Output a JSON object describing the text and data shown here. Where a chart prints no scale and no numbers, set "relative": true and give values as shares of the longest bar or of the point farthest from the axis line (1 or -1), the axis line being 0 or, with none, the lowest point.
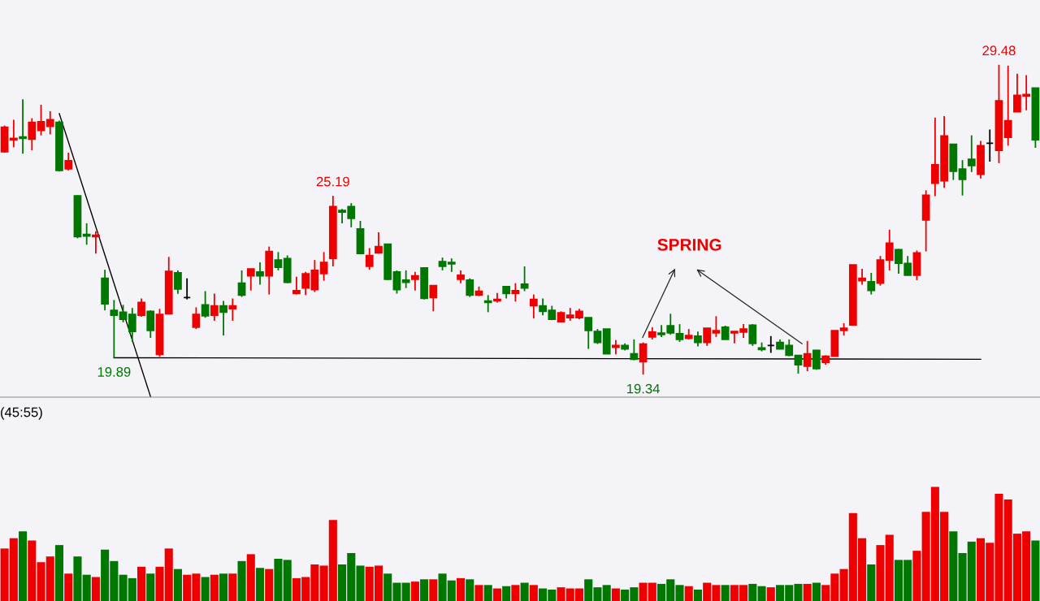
{
  "chart_data": [
    {
      "type": "candlestick",
      "categories": [
        null,
        null,
        null,
        null,
        null,
        null,
        null,
        null,
        null,
        null,
        null,
        null,
        null,
        null,
        null,
        null,
        null,
        null,
        null,
        null,
        null,
        null,
        null,
        null,
        null,
        null,
        null,
        null,
        null,
        null,
        null,
        null,
        null,
        null,
        null,
        null,
        null,
        null,
        null,
        null,
        null,
        null,
        null,
        null,
        null,
        null,
        null,
        null,
        null,
        null,
        null,
        null,
        null,
        null,
        null,
        null,
        null,
        null,
        null,
        null,
        null,
        null,
        null,
        null,
        null,
        null,
        null,
        null,
        null,
        null,
        null,
        null,
        null,
        null,
        null,
        null,
        null,
        null,
        null,
        null,
        null,
        null,
        null,
        null,
        null,
        null,
        null,
        null,
        null,
        null,
        null,
        null,
        null,
        null,
        null,
        null,
        null,
        null,
        null,
        null,
        null,
        null,
        null,
        null,
        null,
        null,
        null,
        null,
        null,
        null,
        null,
        null,
        null,
        null
      ],
      "ohlc": [
        [
          26.63,
          27.49,
          26.6,
          27.44
        ],
        [
          27.02,
          27.68,
          26.78,
          27.07
        ],
        [
          27.12,
          28.35,
          26.57,
          27.07
        ],
        [
          27.04,
          27.73,
          26.68,
          27.6
        ],
        [
          27.33,
          28.17,
          27.17,
          27.62
        ],
        [
          27.46,
          27.96,
          27.2,
          27.68
        ],
        [
          27.6,
          27.65,
          25.99,
          26.02
        ],
        [
          26.07,
          26.6,
          26.02,
          26.34
        ],
        [
          25.19,
          25.21,
          23.8,
          23.85
        ],
        [
          23.93,
          24.29,
          23.59,
          23.87
        ],
        [
          23.85,
          24.03,
          23.3,
          23.9
        ],
        [
          22.49,
          22.77,
          21.44,
          21.65
        ],
        [
          21.44,
          21.78,
          19.89,
          21.28
        ],
        [
          21.38,
          21.62,
          21.05,
          21.15
        ],
        [
          21.31,
          21.52,
          20.41,
          20.75
        ],
        [
          21.28,
          21.83,
          21.23,
          21.7
        ],
        [
          21.41,
          21.44,
          20.54,
          20.78
        ],
        [
          20.0,
          21.49,
          19.92,
          21.31
        ],
        [
          21.33,
          23.19,
          21.33,
          22.72
        ],
        [
          22.67,
          22.75,
          21.98,
          22.14
        ],
        [
          21.86,
          22.49,
          21.8,
          21.86
        ],
        [
          20.89,
          21.54,
          20.83,
          21.31
        ],
        [
          21.62,
          22.07,
          21.2,
          21.26
        ],
        [
          21.28,
          21.99,
          21.1,
          21.59
        ],
        [
          21.59,
          21.75,
          20.62,
          21.38
        ],
        [
          21.49,
          21.83,
          21.1,
          21.59
        ],
        [
          22.33,
          22.75,
          21.88,
          21.94
        ],
        [
          22.57,
          22.8,
          22.09,
          22.8
        ],
        [
          22.7,
          23.01,
          22.28,
          22.57
        ],
        [
          22.57,
          23.53,
          21.96,
          23.37
        ],
        [
          23.09,
          23.35,
          22.75,
          22.85
        ],
        [
          23.14,
          23.24,
          22.33,
          22.36
        ],
        [
          21.99,
          22.54,
          21.96,
          22.09
        ],
        [
          22.17,
          22.7,
          21.94,
          22.64
        ],
        [
          22.12,
          23.09,
          22.04,
          22.75
        ],
        [
          22.64,
          23.35,
          22.41,
          23.01
        ],
        [
          23.14,
          25.19,
          22.88,
          24.84
        ],
        [
          24.71,
          24.76,
          24.29,
          24.66
        ],
        [
          24.84,
          24.95,
          24.16,
          24.45
        ],
        [
          24.11,
          24.37,
          23.3,
          23.3
        ],
        [
          22.88,
          23.48,
          22.77,
          23.24
        ],
        [
          23.32,
          24.0,
          23.3,
          23.53
        ],
        [
          23.61,
          23.61,
          22.43,
          22.46
        ],
        [
          22.7,
          22.75,
          21.99,
          22.12
        ],
        [
          22.43,
          22.75,
          22.17,
          22.36
        ],
        [
          22.46,
          22.7,
          22.09,
          22.57
        ],
        [
          22.83,
          22.85,
          21.8,
          21.83
        ],
        [
          21.86,
          22.25,
          21.41,
          22.25
        ],
        [
          23.04,
          23.17,
          22.75,
          22.88
        ],
        [
          23.01,
          23.14,
          22.7,
          22.96
        ],
        [
          22.46,
          22.75,
          22.33,
          22.59
        ],
        [
          22.43,
          22.49,
          21.88,
          21.94
        ],
        [
          21.94,
          22.22,
          21.91,
          22.07
        ],
        [
          21.75,
          21.94,
          21.38,
          21.7
        ],
        [
          21.75,
          22.01,
          21.7,
          21.8
        ],
        [
          22.22,
          22.22,
          21.83,
          21.99
        ],
        [
          21.99,
          22.33,
          21.73,
          22.09
        ],
        [
          22.3,
          22.88,
          22.07,
          22.17
        ],
        [
          21.59,
          21.96,
          21.18,
          21.8
        ],
        [
          21.59,
          21.83,
          21.28,
          21.41
        ],
        [
          21.44,
          21.59,
          21.12,
          21.15
        ],
        [
          21.07,
          21.41,
          21.07,
          21.36
        ],
        [
          21.2,
          21.52,
          21.1,
          21.28
        ],
        [
          21.2,
          21.49,
          21.15,
          21.41
        ],
        [
          21.2,
          21.2,
          20.18,
          20.78
        ],
        [
          20.75,
          20.83,
          20.34,
          20.39
        ],
        [
          20.83,
          20.83,
          20.02,
          20.02
        ],
        [
          20.23,
          20.47,
          20.0,
          20.29
        ],
        [
          20.29,
          20.36,
          20.13,
          20.18
        ],
        [
          20.02,
          20.49,
          19.81,
          19.84
        ],
        [
          19.76,
          20.39,
          19.34,
          20.34
        ],
        [
          20.57,
          20.89,
          20.49,
          20.73
        ],
        [
          20.7,
          20.96,
          20.57,
          20.65
        ],
        [
          20.94,
          21.33,
          20.65,
          20.7
        ],
        [
          20.68,
          20.99,
          20.41,
          20.49
        ],
        [
          20.52,
          20.83,
          20.49,
          20.62
        ],
        [
          20.6,
          20.75,
          20.26,
          20.39
        ],
        [
          20.39,
          20.86,
          20.28,
          20.86
        ],
        [
          20.7,
          21.25,
          20.57,
          20.78
        ],
        [
          20.89,
          20.94,
          20.49,
          20.49
        ],
        [
          20.7,
          20.75,
          20.36,
          20.75
        ],
        [
          20.73,
          20.99,
          20.54,
          20.83
        ],
        [
          20.96,
          20.99,
          20.28,
          20.36
        ],
        [
          20.21,
          20.39,
          20.1,
          20.16
        ],
        [
          20.29,
          20.6,
          20.05,
          20.29
        ],
        [
          20.39,
          20.49,
          20.18,
          20.18
        ],
        [
          20.29,
          20.49,
          19.94,
          19.97
        ],
        [
          19.97,
          19.97,
          19.37,
          19.66
        ],
        [
          19.61,
          20.44,
          19.45,
          20.02
        ],
        [
          20.13,
          20.15,
          19.5,
          19.53
        ],
        [
          19.74,
          19.97,
          19.66,
          19.94
        ],
        [
          19.94,
          20.78,
          19.94,
          20.78
        ],
        [
          20.78,
          21.02,
          20.62,
          20.86
        ],
        [
          20.96,
          22.93,
          20.96,
          22.93
        ],
        [
          22.41,
          22.8,
          22.28,
          22.49
        ],
        [
          22.38,
          22.67,
          21.96,
          22.09
        ],
        [
          22.33,
          23.22,
          22.25,
          23.09
        ],
        [
          23.09,
          24.08,
          22.75,
          23.64
        ],
        [
          23.43,
          23.45,
          22.64,
          22.98
        ],
        [
          22.98,
          23.22,
          22.59,
          22.59
        ],
        [
          22.59,
          23.4,
          22.43,
          23.32
        ],
        [
          24.4,
          25.37,
          23.37,
          25.21
        ],
        [
          25.6,
          27.75,
          25.18,
          26.21
        ],
        [
          25.68,
          27.8,
          25.45,
          27.15
        ],
        [
          26.88,
          26.88,
          25.71,
          25.99
        ],
        [
          26.07,
          26.36,
          25.2,
          25.73
        ],
        [
          26.39,
          27.17,
          25.97,
          26.18
        ],
        [
          25.89,
          26.99,
          25.76,
          26.83
        ],
        [
          26.91,
          27.36,
          26.31,
          26.91
        ],
        [
          26.68,
          29.48,
          26.26,
          28.3
        ],
        [
          27.1,
          29.45,
          26.83,
          27.65
        ],
        [
          27.94,
          29.19,
          27.94,
          28.48
        ],
        [
          28.46,
          29.14,
          27.99,
          28.51
        ],
        [
          28.72,
          28.72,
          26.76,
          27.02
        ]
      ],
      "colors": [
        "#ee0000",
        "#ee0000",
        "#007700",
        "#ee0000",
        "#ee0000",
        "#ee0000",
        "#007700",
        "#ee0000",
        "#007700",
        "#007700",
        "#ee0000",
        "#007700",
        "#007700",
        "#007700",
        "#007700",
        "#ee0000",
        "#007700",
        "#ee0000",
        "#ee0000",
        "#007700",
        "#000000",
        "#ee0000",
        "#007700",
        "#ee0000",
        "#007700",
        "#ee0000",
        "#007700",
        "#ee0000",
        "#007700",
        "#ee0000",
        "#007700",
        "#007700",
        "#ee0000",
        "#ee0000",
        "#ee0000",
        "#ee0000",
        "#ee0000",
        "#007700",
        "#007700",
        "#007700",
        "#ee0000",
        "#ee0000",
        "#007700",
        "#007700",
        "#007700",
        "#ee0000",
        "#007700",
        "#ee0000",
        "#007700",
        "#007700",
        "#ee0000",
        "#007700",
        "#ee0000",
        "#007700",
        "#ee0000",
        "#007700",
        "#ee0000",
        "#007700",
        "#ee0000",
        "#007700",
        "#007700",
        "#ee0000",
        "#ee0000",
        "#ee0000",
        "#007700",
        "#007700",
        "#007700",
        "#ee0000",
        "#007700",
        "#007700",
        "#ee0000",
        "#ee0000",
        "#007700",
        "#007700",
        "#007700",
        "#ee0000",
        "#007700",
        "#ee0000",
        "#ee0000",
        "#007700",
        "#ee0000",
        "#ee0000",
        "#007700",
        "#007700",
        "#000000",
        "#007700",
        "#007700",
        "#007700",
        "#ee0000",
        "#007700",
        "#ee0000",
        "#ee0000",
        "#ee0000",
        "#ee0000",
        "#ee0000",
        "#007700",
        "#ee0000",
        "#ee0000",
        "#007700",
        "#007700",
        "#ee0000",
        "#ee0000",
        "#ee0000",
        "#ee0000",
        "#007700",
        "#007700",
        "#007700",
        "#ee0000",
        "#000000",
        "#ee0000",
        "#ee0000",
        "#ee0000",
        "#ee0000",
        "#007700"
      ],
      "ylim": [
        18.6,
        31.6
      ],
      "series": [
        {
          "type": "line",
          "color": "#000000",
          "values": [
            null,
            null,
            null,
            null,
            null,
            null,
            27.88,
            null,
            null,
            null,
            null,
            null,
            null,
            null,
            null,
            null,
            18.62,
            null,
            null,
            null,
            null,
            null,
            null,
            null,
            null,
            null,
            null,
            null,
            null,
            null,
            null,
            null,
            null,
            null,
            null,
            null,
            null,
            null,
            null,
            null,
            null,
            null,
            null,
            null,
            null,
            null,
            null,
            null,
            null,
            null,
            null,
            null,
            null,
            null,
            null,
            null,
            null,
            null,
            null,
            null,
            null,
            null,
            null,
            null,
            null,
            null,
            null,
            null,
            null,
            null,
            null,
            null,
            null,
            null,
            null,
            null,
            null,
            null,
            null,
            null,
            null,
            null,
            null,
            null,
            null,
            null,
            null,
            null,
            null,
            null,
            null,
            null,
            null,
            null,
            null,
            null,
            null,
            null,
            null,
            null,
            null,
            null,
            null,
            null,
            null,
            null,
            null,
            null,
            null,
            null,
            null,
            null,
            null,
            null
          ]
        },
        {
          "type": "line",
          "color": "#000000",
          "values": [
            null,
            null,
            null,
            null,
            null,
            null,
            null,
            null,
            null,
            null,
            null,
            null,
            19.89,
            null,
            null,
            null,
            null,
            null,
            null,
            null,
            null,
            null,
            null,
            null,
            null,
            null,
            null,
            null,
            null,
            null,
            null,
            null,
            null,
            null,
            null,
            null,
            null,
            null,
            null,
            null,
            null,
            null,
            null,
            null,
            null,
            null,
            null,
            null,
            null,
            null,
            null,
            null,
            null,
            null,
            null,
            null,
            null,
            null,
            null,
            null,
            null,
            null,
            null,
            null,
            null,
            null,
            null,
            null,
            null,
            null,
            null,
            null,
            null,
            null,
            null,
            null,
            null,
            null,
            null,
            null,
            null,
            null,
            null,
            null,
            null,
            null,
            null,
            null,
            null,
            null,
            null,
            null,
            null,
            null,
            null,
            null,
            null,
            null,
            null,
            null,
            null,
            null,
            null,
            null,
            null,
            null,
            null,
            19.84,
            null,
            null,
            null,
            null,
            null,
            null
          ]
        }
      ],
      "annotations": [
        {
          "text": "19.89",
          "y": 19.89
        },
        {
          "text": "25.19",
          "y": 25.19
        },
        {
          "text": "19.34",
          "y": 19.34
        },
        {
          "text": "29.48",
          "y": 29.48
        },
        "SPRING"
      ]
    },
    {
      "type": "bar",
      "relative": true,
      "categories": [
        null,
        null,
        null,
        null,
        null,
        null,
        null,
        null,
        null,
        null,
        null,
        null,
        null,
        null,
        null,
        null,
        null,
        null,
        null,
        null,
        null,
        null,
        null,
        null,
        null,
        null,
        null,
        null,
        null,
        null,
        null,
        null,
        null,
        null,
        null,
        null,
        null,
        null,
        null,
        null,
        null,
        null,
        null,
        null,
        null,
        null,
        null,
        null,
        null,
        null,
        null,
        null,
        null,
        null,
        null,
        null,
        null,
        null,
        null,
        null,
        null,
        null,
        null,
        null,
        null,
        null,
        null,
        null,
        null,
        null,
        null,
        null,
        null,
        null,
        null,
        null,
        null,
        null,
        null,
        null,
        null,
        null,
        null,
        null,
        null,
        null,
        null,
        null,
        null,
        null,
        null,
        null,
        null,
        null,
        null,
        null,
        null,
        null,
        null,
        null,
        null,
        null,
        null,
        null,
        null,
        null,
        null,
        null,
        null,
        null,
        null,
        null,
        null,
        null
      ],
      "values": [
        0.46,
        0.55,
        0.61,
        0.53,
        0.34,
        0.39,
        0.49,
        0.24,
        0.39,
        0.23,
        0.21,
        0.45,
        0.35,
        0.23,
        0.2,
        0.3,
        0.24,
        0.3,
        0.46,
        0.28,
        0.23,
        0.24,
        0.21,
        0.23,
        0.24,
        0.24,
        0.35,
        0.41,
        0.29,
        0.28,
        0.37,
        0.36,
        0.2,
        0.21,
        0.32,
        0.31,
        0.71,
        0.32,
        0.42,
        0.31,
        0.3,
        0.31,
        0.24,
        0.16,
        0.16,
        0.17,
        0.19,
        0.19,
        0.24,
        0.18,
        0.2,
        0.19,
        0.14,
        0.14,
        0.11,
        0.13,
        0.14,
        0.16,
        0.14,
        0.11,
        0.1,
        0.12,
        0.11,
        0.11,
        0.19,
        0.12,
        0.14,
        0.11,
        0.1,
        0.12,
        0.16,
        0.16,
        0.15,
        0.19,
        0.14,
        0.13,
        0.1,
        0.16,
        0.14,
        0.14,
        0.14,
        0.14,
        0.15,
        0.13,
        0.12,
        0.14,
        0.14,
        0.15,
        0.15,
        0.16,
        0.14,
        0.24,
        0.28,
        0.77,
        0.55,
        0.32,
        0.49,
        0.58,
        0.36,
        0.36,
        0.44,
        0.78,
        1,
        0.78,
        0.61,
        0.42,
        0.52,
        0.55,
        0.51,
        0.94,
        0.89,
        0.59,
        0.61,
        0.53
      ],
      "colors": [
        "#ee0000",
        "#ee0000",
        "#007700",
        "#ee0000",
        "#ee0000",
        "#ee0000",
        "#007700",
        "#ee0000",
        "#007700",
        "#007700",
        "#ee0000",
        "#007700",
        "#007700",
        "#007700",
        "#007700",
        "#ee0000",
        "#007700",
        "#ee0000",
        "#ee0000",
        "#007700",
        "#ee0000",
        "#ee0000",
        "#007700",
        "#ee0000",
        "#007700",
        "#ee0000",
        "#007700",
        "#ee0000",
        "#007700",
        "#ee0000",
        "#007700",
        "#007700",
        "#ee0000",
        "#ee0000",
        "#ee0000",
        "#ee0000",
        "#ee0000",
        "#007700",
        "#007700",
        "#007700",
        "#ee0000",
        "#ee0000",
        "#007700",
        "#007700",
        "#007700",
        "#ee0000",
        "#007700",
        "#ee0000",
        "#007700",
        "#007700",
        "#ee0000",
        "#007700",
        "#ee0000",
        "#007700",
        "#ee0000",
        "#007700",
        "#ee0000",
        "#007700",
        "#ee0000",
        "#007700",
        "#007700",
        "#ee0000",
        "#ee0000",
        "#ee0000",
        "#007700",
        "#007700",
        "#007700",
        "#ee0000",
        "#007700",
        "#007700",
        "#ee0000",
        "#ee0000",
        "#007700",
        "#007700",
        "#007700",
        "#ee0000",
        "#007700",
        "#ee0000",
        "#ee0000",
        "#007700",
        "#ee0000",
        "#ee0000",
        "#007700",
        "#007700",
        "#ee0000",
        "#007700",
        "#007700",
        "#007700",
        "#ee0000",
        "#007700",
        "#ee0000",
        "#ee0000",
        "#ee0000",
        "#ee0000",
        "#ee0000",
        "#007700",
        "#ee0000",
        "#ee0000",
        "#007700",
        "#007700",
        "#ee0000",
        "#ee0000",
        "#ee0000",
        "#ee0000",
        "#007700",
        "#007700",
        "#007700",
        "#ee0000",
        "#ee0000",
        "#ee0000",
        "#ee0000",
        "#ee0000",
        "#ee0000",
        "#007700"
      ],
      "annotations": [
        "(45:55)"
      ]
    }
  ]
}
